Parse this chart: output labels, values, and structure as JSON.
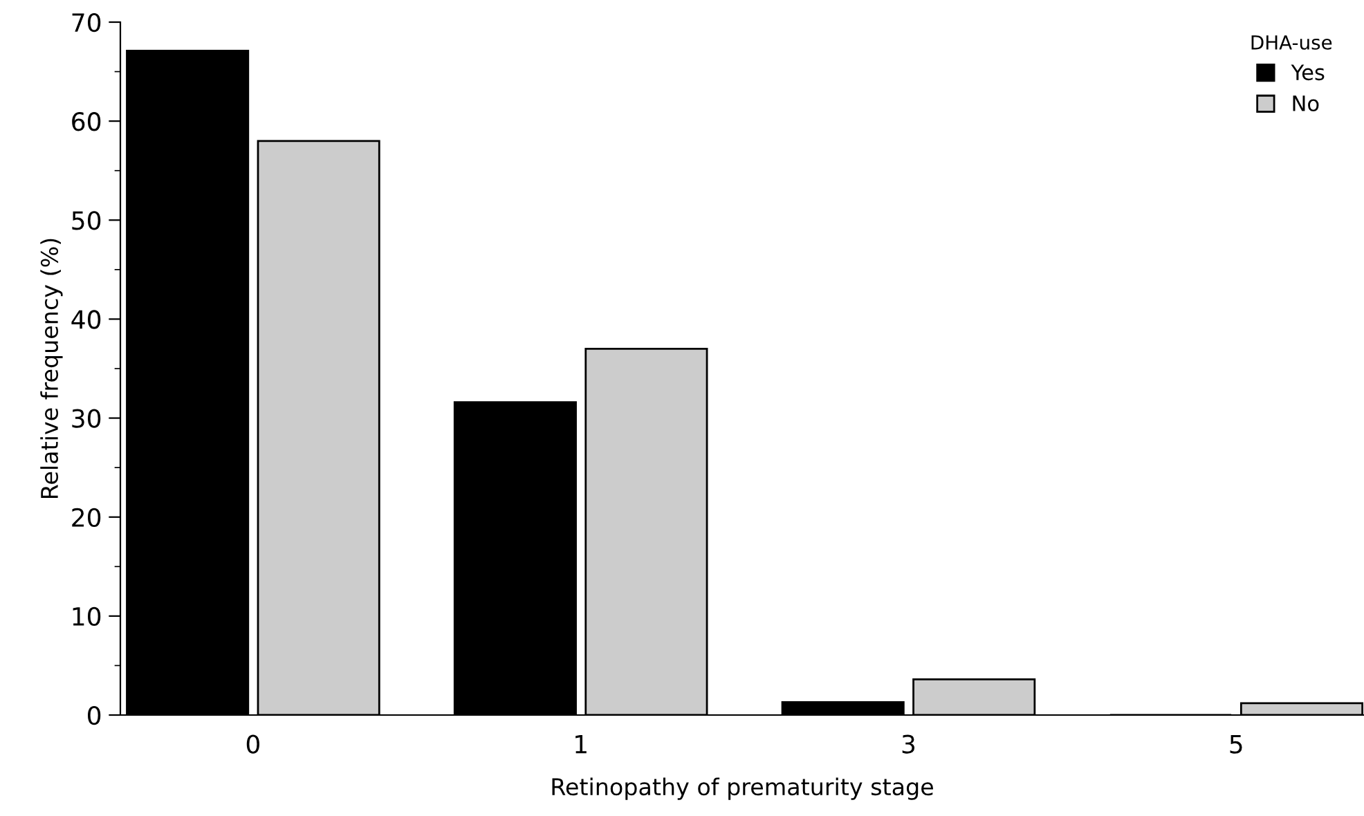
{
  "chart_data": {
    "type": "bar",
    "xlabel": "Retinopathy of prematurity stage",
    "ylabel": "Relative frequency (%)",
    "legend_title": "DHA-use",
    "categories": [
      "0",
      "1",
      "3",
      "5"
    ],
    "series": [
      {
        "name": "Yes",
        "color": "#000000",
        "values": [
          67.1,
          31.6,
          1.3,
          0
        ]
      },
      {
        "name": "No",
        "color": "#cccccc",
        "values": [
          58,
          37,
          3.6,
          1.2
        ]
      }
    ],
    "ylim": [
      0,
      70
    ],
    "yticks": [
      0,
      10,
      20,
      30,
      40,
      50,
      60,
      70
    ],
    "grid": false,
    "legend": "top right"
  }
}
